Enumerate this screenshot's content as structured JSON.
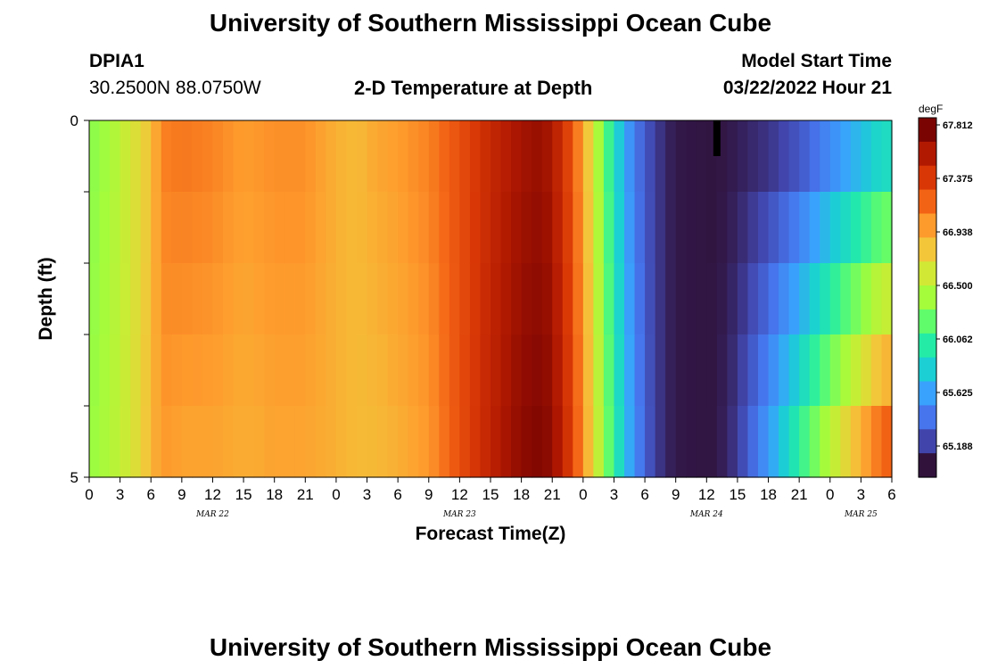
{
  "header": {
    "title": "University of Southern Mississippi Ocean Cube",
    "station_id": "DPIA1",
    "coords": "30.2500N  88.0750W",
    "subtitle": "2-D Temperature at Depth",
    "model_label": "Model Start Time",
    "model_time": "03/22/2022 Hour 21"
  },
  "footer": {
    "title": "University of Southern Mississippi Ocean Cube"
  },
  "chart_data": {
    "type": "heatmap",
    "title": "2-D Temperature at Depth",
    "xlabel": "Forecast Time(Z)",
    "ylabel": "Depth (ft)",
    "x_tick_labels": [
      "0",
      "3",
      "6",
      "9",
      "12",
      "15",
      "18",
      "21",
      "0",
      "3",
      "6",
      "9",
      "12",
      "15",
      "18",
      "21",
      "0",
      "3",
      "6",
      "9",
      "12",
      "15",
      "18",
      "21",
      "0",
      "3",
      "6"
    ],
    "x_hours": [
      0,
      3,
      6,
      9,
      12,
      15,
      18,
      21,
      24,
      27,
      30,
      33,
      36,
      39,
      42,
      45,
      48,
      51,
      54,
      57,
      60,
      63,
      66,
      69,
      72,
      75,
      78
    ],
    "date_labels": [
      {
        "label": "MAR 22",
        "hour": 12
      },
      {
        "label": "MAR 23",
        "hour": 36
      },
      {
        "label": "MAR 24",
        "hour": 60
      },
      {
        "label": "MAR 25",
        "hour": 75
      }
    ],
    "y_tick_labels": [
      "0",
      "5"
    ],
    "ylim": [
      5,
      0
    ],
    "depth_levels_ft": [
      0,
      1,
      2,
      3,
      4,
      5
    ],
    "xlim": [
      0,
      78
    ],
    "colorbar": {
      "unit": "degF",
      "min": 64.97,
      "max": 67.812,
      "tick_values": [
        "67.812",
        "67.375",
        "66.938",
        "66.500",
        "66.062",
        "65.625",
        "65.188"
      ],
      "colors": [
        "#30123b",
        "#4145ab",
        "#4675ed",
        "#39a2fc",
        "#1bcfd4",
        "#24eca6",
        "#61fc6c",
        "#a4fc3b",
        "#d1e834",
        "#f3c63a",
        "#fe9b2d",
        "#f36315",
        "#d93806",
        "#b11901",
        "#7a0402"
      ]
    },
    "temperature_profile": {
      "hours": [
        0,
        2,
        4,
        6,
        7,
        9,
        12,
        15,
        18,
        21,
        24,
        26,
        28,
        30,
        33,
        36,
        39,
        42,
        44,
        45,
        46,
        47,
        48,
        49,
        50,
        51,
        52,
        53,
        54,
        55,
        56,
        57,
        58,
        60,
        61,
        62,
        63,
        64,
        66,
        69,
        72,
        75,
        77,
        78
      ],
      "surface_degF": [
        66.3,
        66.4,
        66.6,
        66.8,
        67.1,
        67.15,
        67.1,
        67.0,
        67.05,
        67.05,
        66.9,
        66.85,
        66.95,
        67.0,
        67.1,
        67.3,
        67.5,
        67.65,
        67.7,
        67.6,
        67.45,
        67.25,
        66.95,
        66.6,
        66.2,
        65.9,
        65.6,
        65.4,
        65.25,
        65.15,
        65.05,
        65.0,
        64.99,
        64.98,
        64.98,
        64.99,
        65.0,
        65.02,
        65.05,
        65.15,
        65.35,
        65.55,
        65.7,
        65.7
      ],
      "bottom_degF": [
        66.35,
        66.45,
        66.6,
        66.85,
        67.0,
        66.95,
        66.95,
        66.9,
        66.95,
        66.95,
        66.9,
        66.85,
        66.85,
        66.9,
        67.0,
        67.3,
        67.55,
        67.75,
        67.8,
        67.72,
        67.55,
        67.35,
        67.05,
        66.7,
        66.35,
        66.05,
        65.75,
        65.5,
        65.3,
        65.15,
        65.05,
        65.0,
        64.99,
        64.98,
        64.99,
        65.05,
        65.15,
        65.3,
        65.6,
        66.1,
        66.6,
        67.05,
        67.35,
        67.4
      ]
    },
    "annotations": [
      {
        "type": "missing-data-marker",
        "hour": 61,
        "depth_ft_from": 0,
        "depth_ft_to": 0.5
      }
    ]
  }
}
